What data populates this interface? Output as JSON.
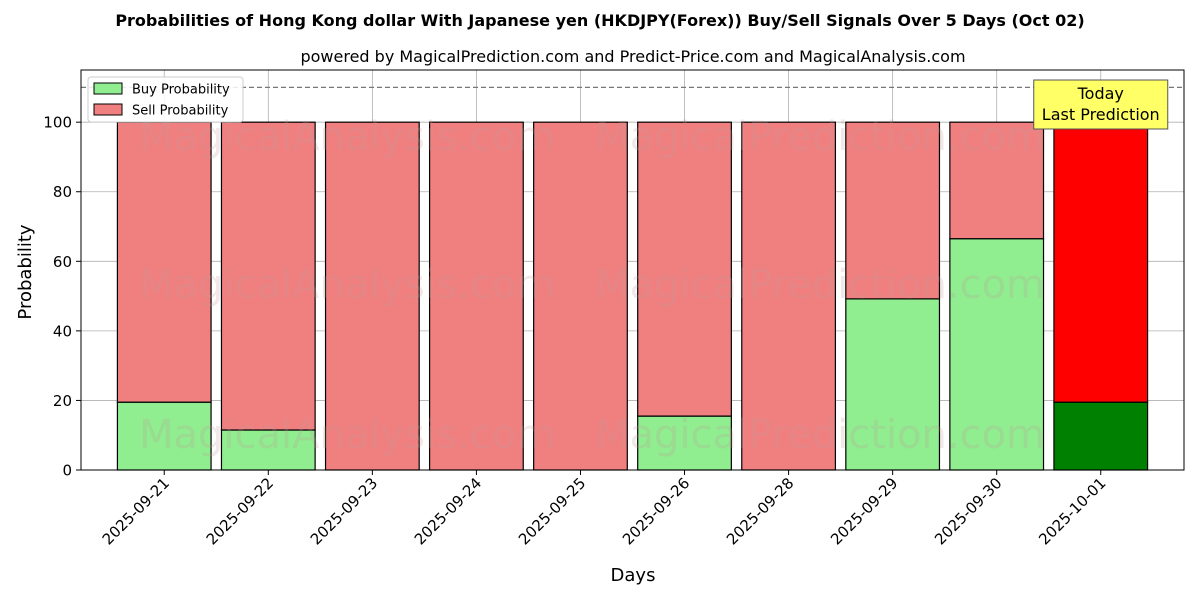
{
  "chart_data": {
    "type": "bar",
    "stacked": true,
    "title": "Probabilities of Hong Kong dollar With Japanese yen (HKDJPY(Forex)) Buy/Sell Signals Over 5 Days (Oct 02)",
    "subtitle": "powered by MagicalPrediction.com and Predict-Price.com and MagicalAnalysis.com",
    "xlabel": "Days",
    "ylabel": "Probability",
    "ylim": [
      0,
      115
    ],
    "yticks": [
      0,
      20,
      40,
      60,
      80,
      100
    ],
    "reference_line": 110,
    "grid": true,
    "legend_position": "top-left",
    "categories": [
      "2025-09-21",
      "2025-09-22",
      "2025-09-23",
      "2025-09-24",
      "2025-09-25",
      "2025-09-26",
      "2025-09-28",
      "2025-09-29",
      "2025-09-30",
      "2025-10-01"
    ],
    "series": [
      {
        "name": "Buy Probability",
        "color": "#90ee90",
        "highlight_color": "#008000",
        "values": [
          19.5,
          11.5,
          0,
          0,
          0,
          15.5,
          0,
          49.2,
          66.5,
          19.5
        ]
      },
      {
        "name": "Sell Probability",
        "color": "#f08080",
        "highlight_color": "#ff0000",
        "values": [
          80.5,
          88.5,
          100,
          100,
          100,
          84.5,
          100,
          50.8,
          33.5,
          80.5
        ]
      }
    ],
    "highlight_index": 9,
    "annotation": {
      "lines": [
        "Today",
        "Last Prediction"
      ],
      "background": "#ffff66"
    },
    "watermarks": [
      "MagicalAnalysis.com",
      "MagicalPrediction.com"
    ]
  }
}
